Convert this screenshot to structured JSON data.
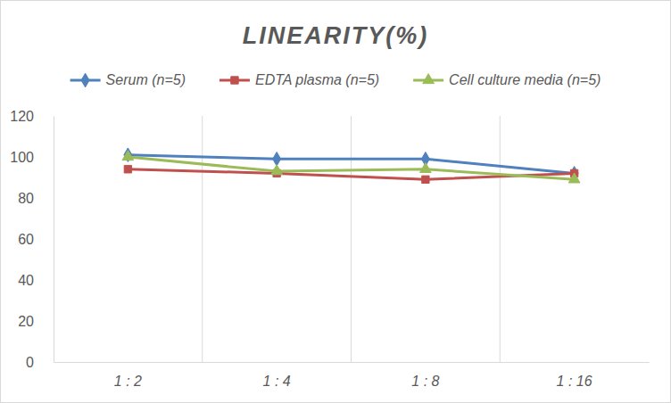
{
  "chart_data": {
    "type": "line",
    "title": "LINEARITY(%)",
    "categories": [
      "1 : 2",
      "1 : 4",
      "1 : 8",
      "1 : 16"
    ],
    "series": [
      {
        "name": "Serum (n=5)",
        "color": "#4f81bd",
        "marker": "diamond",
        "values": [
          101,
          99,
          99,
          92
        ]
      },
      {
        "name": "EDTA plasma (n=5)",
        "color": "#c0504d",
        "marker": "square",
        "values": [
          94,
          92,
          89,
          92
        ]
      },
      {
        "name": "Cell culture media (n=5)",
        "color": "#9bbb59",
        "marker": "triangle",
        "values": [
          100,
          93,
          94,
          89
        ]
      }
    ],
    "ylim": [
      0,
      120
    ],
    "yticks": [
      0,
      20,
      40,
      60,
      80,
      100,
      120
    ],
    "grid": true,
    "legend": "top"
  }
}
